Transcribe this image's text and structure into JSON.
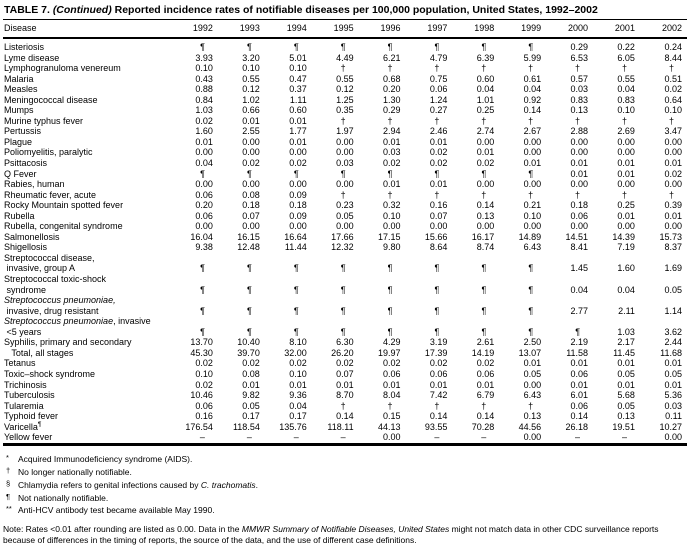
{
  "title": {
    "segs": [
      "TABLE 7. ",
      {
        "t": "(Continued)",
        "i": true
      },
      " Reported incidence rates of notifiable diseases per 100,000 population, United States, 1992–2002"
    ]
  },
  "columns": [
    "Disease",
    "1992",
    "1993",
    "1994",
    "1995",
    "1996",
    "1997",
    "1998",
    "1999",
    "2000",
    "2001",
    "2002"
  ],
  "rows": [
    {
      "lines": [
        [
          "Listeriosis"
        ]
      ],
      "values": [
        "¶",
        "¶",
        "¶",
        "¶",
        "¶",
        "¶",
        "¶",
        "¶",
        "0.29",
        "0.22",
        "0.24"
      ]
    },
    {
      "lines": [
        [
          "Lyme disease"
        ]
      ],
      "values": [
        "3.93",
        "3.20",
        "5.01",
        "4.49",
        "6.21",
        "4.79",
        "6.39",
        "5.99",
        "6.53",
        "6.05",
        "8.44"
      ]
    },
    {
      "lines": [
        [
          "Lymphogranuloma venereum"
        ]
      ],
      "values": [
        "0.10",
        "0.10",
        "0.10",
        "†",
        "†",
        "†",
        "†",
        "†",
        "†",
        "†",
        "†"
      ]
    },
    {
      "lines": [
        [
          "Malaria"
        ]
      ],
      "values": [
        "0.43",
        "0.55",
        "0.47",
        "0.55",
        "0.68",
        "0.75",
        "0.60",
        "0.61",
        "0.57",
        "0.55",
        "0.51"
      ]
    },
    {
      "lines": [
        [
          "Measles"
        ]
      ],
      "values": [
        "0.88",
        "0.12",
        "0.37",
        "0.12",
        "0.20",
        "0.06",
        "0.04",
        "0.04",
        "0.03",
        "0.04",
        "0.02"
      ]
    },
    {
      "lines": [
        [
          "Meningococcal disease"
        ]
      ],
      "values": [
        "0.84",
        "1.02",
        "1.11",
        "1.25",
        "1.30",
        "1.24",
        "1.01",
        "0.92",
        "0.83",
        "0.83",
        "0.64"
      ]
    },
    {
      "lines": [
        [
          "Mumps"
        ]
      ],
      "values": [
        "1.03",
        "0.66",
        "0.60",
        "0.35",
        "0.29",
        "0.27",
        "0.25",
        "0.14",
        "0.13",
        "0.10",
        "0.10"
      ]
    },
    {
      "lines": [
        [
          "Murine typhus fever"
        ]
      ],
      "values": [
        "0.02",
        "0.01",
        "0.01",
        "†",
        "†",
        "†",
        "†",
        "†",
        "†",
        "†",
        "†"
      ]
    },
    {
      "lines": [
        [
          "Pertussis"
        ]
      ],
      "values": [
        "1.60",
        "2.55",
        "1.77",
        "1.97",
        "2.94",
        "2.46",
        "2.74",
        "2.67",
        "2.88",
        "2.69",
        "3.47"
      ]
    },
    {
      "lines": [
        [
          "Plague"
        ]
      ],
      "values": [
        "0.01",
        "0.00",
        "0.01",
        "0.00",
        "0.01",
        "0.01",
        "0.00",
        "0.00",
        "0.00",
        "0.00",
        "0.00"
      ]
    },
    {
      "lines": [
        [
          "Poliomyelitis, paralytic"
        ]
      ],
      "values": [
        "0.00",
        "0.00",
        "0.00",
        "0.00",
        "0.03",
        "0.02",
        "0.01",
        "0.00",
        "0.00",
        "0.00",
        "0.00"
      ]
    },
    {
      "lines": [
        [
          "Psittacosis"
        ]
      ],
      "values": [
        "0.04",
        "0.02",
        "0.02",
        "0.03",
        "0.02",
        "0.02",
        "0.02",
        "0.01",
        "0.01",
        "0.01",
        "0.01"
      ]
    },
    {
      "lines": [
        [
          "Q Fever"
        ]
      ],
      "values": [
        "¶",
        "¶",
        "¶",
        "¶",
        "¶",
        "¶",
        "¶",
        "¶",
        "0.01",
        "0.01",
        "0.02"
      ]
    },
    {
      "lines": [
        [
          "Rabies, human"
        ]
      ],
      "values": [
        "0.00",
        "0.00",
        "0.00",
        "0.00",
        "0.01",
        "0.01",
        "0.00",
        "0.00",
        "0.00",
        "0.00",
        "0.00"
      ]
    },
    {
      "lines": [
        [
          "Rheumatic fever, acute"
        ]
      ],
      "values": [
        "0.06",
        "0.08",
        "0.09",
        "†",
        "†",
        "†",
        "†",
        "†",
        "†",
        "†",
        "†"
      ]
    },
    {
      "lines": [
        [
          "Rocky Mountain spotted fever"
        ]
      ],
      "values": [
        "0.20",
        "0.18",
        "0.18",
        "0.23",
        "0.32",
        "0.16",
        "0.14",
        "0.21",
        "0.18",
        "0.25",
        "0.39"
      ]
    },
    {
      "lines": [
        [
          "Rubella"
        ]
      ],
      "values": [
        "0.06",
        "0.07",
        "0.09",
        "0.05",
        "0.10",
        "0.07",
        "0.13",
        "0.10",
        "0.06",
        "0.01",
        "0.01"
      ]
    },
    {
      "lines": [
        [
          "Rubella, congenital syndrome"
        ]
      ],
      "values": [
        "0.00",
        "0.00",
        "0.00",
        "0.00",
        "0.00",
        "0.00",
        "0.00",
        "0.00",
        "0.00",
        "0.00",
        "0.00"
      ]
    },
    {
      "lines": [
        [
          "Salmonellosis"
        ]
      ],
      "values": [
        "16.04",
        "16.15",
        "16.64",
        "17.66",
        "17.15",
        "15.66",
        "16.17",
        "14.89",
        "14.51",
        "14.39",
        "15.73"
      ]
    },
    {
      "lines": [
        [
          "Shigellosis"
        ]
      ],
      "values": [
        "9.38",
        "12.48",
        "11.44",
        "12.32",
        "9.80",
        "8.64",
        "8.74",
        "6.43",
        "8.41",
        "7.19",
        "8.37"
      ]
    },
    {
      "lines": [
        [
          "Streptococcal disease,"
        ],
        [
          " invasive, group A"
        ]
      ],
      "values": [
        "¶",
        "¶",
        "¶",
        "¶",
        "¶",
        "¶",
        "¶",
        "¶",
        "1.45",
        "1.60",
        "1.69"
      ]
    },
    {
      "lines": [
        [
          "Streptococcal toxic-shock"
        ],
        [
          " syndrome"
        ]
      ],
      "values": [
        "¶",
        "¶",
        "¶",
        "¶",
        "¶",
        "¶",
        "¶",
        "¶",
        "0.04",
        "0.04",
        "0.05"
      ]
    },
    {
      "lines": [
        [
          {
            "t": "Streptococcus pneumoniae,",
            "i": true
          }
        ],
        [
          " invasive, drug resistant"
        ]
      ],
      "values": [
        "¶",
        "¶",
        "¶",
        "¶",
        "¶",
        "¶",
        "¶",
        "¶",
        "2.77",
        "2.11",
        "1.14"
      ]
    },
    {
      "lines": [
        [
          {
            "t": "Streptococcus pneumoniae",
            "i": true
          },
          ", invasive"
        ],
        [
          " <5 years"
        ]
      ],
      "values": [
        "¶",
        "¶",
        "¶",
        "¶",
        "¶",
        "¶",
        "¶",
        "¶",
        "¶",
        "1.03",
        "3.62"
      ]
    },
    {
      "lines": [
        [
          "Syphilis, primary and secondary"
        ]
      ],
      "values": [
        "13.70",
        "10.40",
        "8.10",
        "6.30",
        "4.29",
        "3.19",
        "2.61",
        "2.50",
        "2.19",
        "2.17",
        "2.44"
      ]
    },
    {
      "lines": [
        [
          "   Total, all stages"
        ]
      ],
      "values": [
        "45.30",
        "39.70",
        "32.00",
        "26.20",
        "19.97",
        "17.39",
        "14.19",
        "13.07",
        "11.58",
        "11.45",
        "11.68"
      ]
    },
    {
      "lines": [
        [
          "Tetanus"
        ]
      ],
      "values": [
        "0.02",
        "0.02",
        "0.02",
        "0.02",
        "0.02",
        "0.02",
        "0.02",
        "0.01",
        "0.01",
        "0.01",
        "0.01"
      ]
    },
    {
      "lines": [
        [
          "Toxic–shock syndrome"
        ]
      ],
      "values": [
        "0.10",
        "0.08",
        "0.10",
        "0.07",
        "0.06",
        "0.06",
        "0.06",
        "0.05",
        "0.06",
        "0.05",
        "0.05"
      ]
    },
    {
      "lines": [
        [
          "Trichinosis"
        ]
      ],
      "values": [
        "0.02",
        "0.01",
        "0.01",
        "0.01",
        "0.01",
        "0.01",
        "0.01",
        "0.00",
        "0.01",
        "0.01",
        "0.01"
      ]
    },
    {
      "lines": [
        [
          "Tuberculosis"
        ]
      ],
      "values": [
        "10.46",
        "9.82",
        "9.36",
        "8.70",
        "8.04",
        "7.42",
        "6.79",
        "6.43",
        "6.01",
        "5.68",
        "5.36"
      ]
    },
    {
      "lines": [
        [
          "Tularemia"
        ]
      ],
      "values": [
        "0.06",
        "0.05",
        "0.04",
        "†",
        "†",
        "†",
        "†",
        "†",
        "0.06",
        "0.05",
        "0.03"
      ]
    },
    {
      "lines": [
        [
          "Typhoid fever"
        ]
      ],
      "values": [
        "0.16",
        "0.17",
        "0.17",
        "0.14",
        "0.15",
        "0.14",
        "0.14",
        "0.13",
        "0.14",
        "0.13",
        "0.11"
      ]
    },
    {
      "lines": [
        [
          "Varicella",
          {
            "t": "¶",
            "sup": true
          }
        ]
      ],
      "values": [
        "176.54",
        "118.54",
        "135.76",
        "118.11",
        "44.13",
        "93.55",
        "70.28",
        "44.56",
        "26.18",
        "19.51",
        "10.27"
      ]
    },
    {
      "lines": [
        [
          "Yellow fever"
        ]
      ],
      "values": [
        "–",
        "–",
        "–",
        "–",
        "0.00",
        "–",
        "–",
        "0.00",
        "–",
        "–",
        "0.00"
      ]
    }
  ],
  "footnotes": [
    {
      "sym": "*",
      "segs": [
        "Acquired Immunodeficiency syndrome (AIDS)."
      ]
    },
    {
      "sym": "†",
      "segs": [
        "No longer nationally notifiable."
      ]
    },
    {
      "sym": "§",
      "segs": [
        "Chlamydia refers to genital infections caused by ",
        {
          "t": "C. trachomatis",
          "i": true
        },
        "."
      ]
    },
    {
      "sym": "¶",
      "segs": [
        "Not nationally notifiable."
      ]
    },
    {
      "sym": "**",
      "segs": [
        "Anti-HCV antibody test became available May 1990."
      ]
    }
  ],
  "note": {
    "segs": [
      "Note: Rates <0.01 after rounding are listed as 0.00.  Data in the ",
      {
        "t": "MMWR Summary of Notifiable Diseases, United States",
        "i": true
      },
      " might not match data in other CDC surveillance reports because of differences in the timing of reports, the source of the data, and the use of different case definitions."
    ]
  }
}
